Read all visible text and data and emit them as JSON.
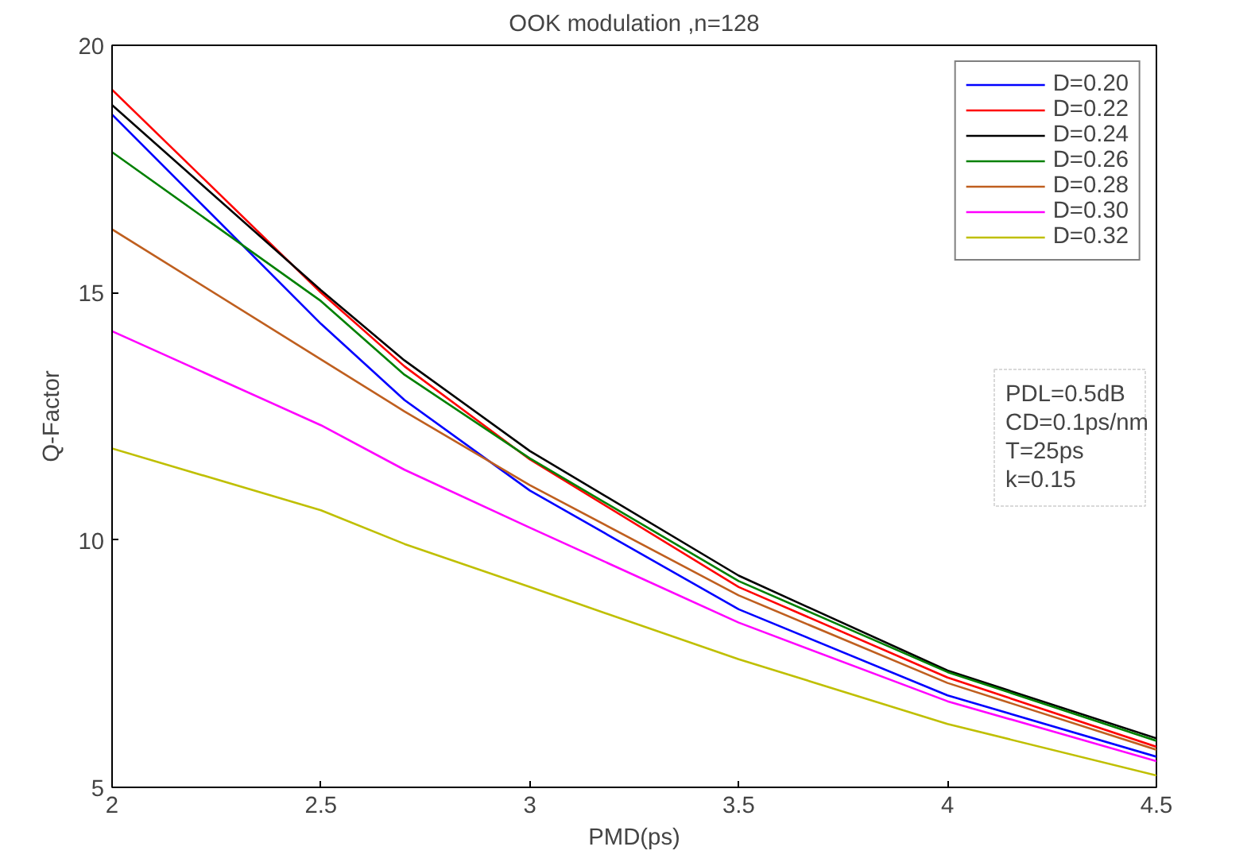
{
  "chart_data": {
    "type": "line",
    "title": "OOK modulation ,n=128",
    "xlabel": "PMD(ps)",
    "ylabel": "Q-Factor",
    "x": [
      2,
      2.5,
      2.7,
      3,
      3.5,
      4,
      4.5
    ],
    "series": [
      {
        "name": "D=0.20",
        "color": "#0000ff",
        "values": [
          18.6,
          14.37,
          12.83,
          11.0,
          8.6,
          6.86,
          5.62
        ]
      },
      {
        "name": "D=0.22",
        "color": "#ff0000",
        "values": [
          19.1,
          15.0,
          13.51,
          11.63,
          9.05,
          7.22,
          5.82
        ]
      },
      {
        "name": "D=0.24",
        "color": "#000000",
        "values": [
          18.79,
          15.05,
          13.63,
          11.8,
          9.28,
          7.36,
          5.99
        ]
      },
      {
        "name": "D=0.26",
        "color": "#008000",
        "values": [
          17.84,
          14.83,
          13.34,
          11.65,
          9.17,
          7.33,
          5.94
        ]
      },
      {
        "name": "D=0.28",
        "color": "#bf5f1f",
        "values": [
          16.28,
          13.65,
          12.6,
          11.11,
          8.88,
          7.11,
          5.76
        ]
      },
      {
        "name": "D=0.30",
        "color": "#ff00ff",
        "values": [
          14.22,
          12.32,
          11.42,
          10.25,
          8.33,
          6.74,
          5.53
        ]
      },
      {
        "name": "D=0.32",
        "color": "#bfbf00",
        "values": [
          11.85,
          10.6,
          9.92,
          9.05,
          7.59,
          6.28,
          5.24
        ]
      }
    ],
    "xlim": [
      2,
      4.5
    ],
    "ylim": [
      5,
      20
    ],
    "xticks": [
      2,
      2.5,
      3,
      3.5,
      4,
      4.5
    ],
    "yticks": [
      5,
      10,
      15,
      20
    ],
    "legend": "top right",
    "grid": false,
    "annotations": [
      "PDL=0.5dB",
      "CD=0.1ps/nm",
      "T=25ps",
      "k=0.15"
    ]
  }
}
